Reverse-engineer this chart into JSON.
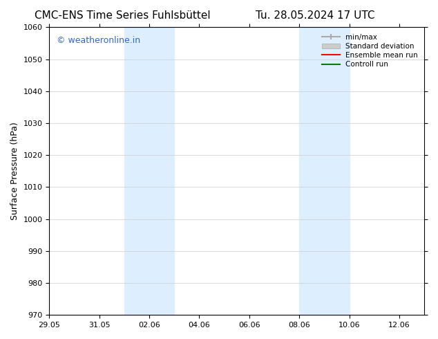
{
  "title_left": "CMC-ENS Time Series Fuhlsbüttel",
  "title_right": "Tu. 28.05.2024 17 UTC",
  "ylabel": "Surface Pressure (hPa)",
  "ylim": [
    970,
    1060
  ],
  "yticks": [
    970,
    980,
    990,
    1000,
    1010,
    1020,
    1030,
    1040,
    1050,
    1060
  ],
  "xlim_start": "2024-05-29",
  "xlim_end": "2024-06-13",
  "xtick_labels": [
    "29.05",
    "31.05",
    "02.06",
    "04.06",
    "06.06",
    "08.06",
    "10.06",
    "12.06"
  ],
  "shaded_bands": [
    {
      "x_start": "2024-06-01",
      "x_end": "2024-06-03"
    },
    {
      "x_start": "2024-06-08",
      "x_end": "2024-06-10"
    }
  ],
  "shade_color": "#ddeeff",
  "background_color": "#ffffff",
  "watermark_text": "© weatheronline.in",
  "watermark_color": "#3366cc",
  "legend_entries": [
    {
      "label": "min/max",
      "color": "#aaaaaa",
      "lw": 1.5,
      "style": "solid"
    },
    {
      "label": "Standard deviation",
      "color": "#cccccc",
      "lw": 6,
      "style": "solid"
    },
    {
      "label": "Ensemble mean run",
      "color": "#ff0000",
      "lw": 1.5,
      "style": "solid"
    },
    {
      "label": "Controll run",
      "color": "#008000",
      "lw": 1.5,
      "style": "solid"
    }
  ],
  "title_fontsize": 11,
  "tick_fontsize": 8,
  "ylabel_fontsize": 9,
  "watermark_fontsize": 9
}
